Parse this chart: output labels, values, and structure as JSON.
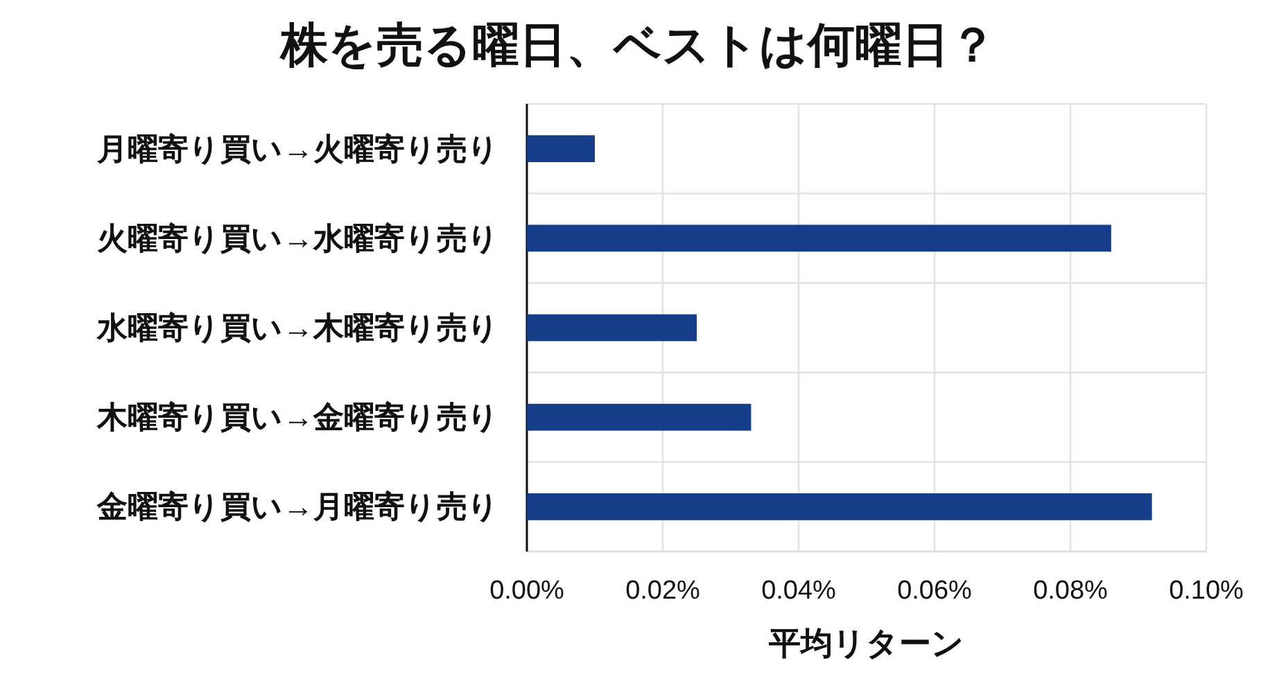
{
  "chart_data": {
    "type": "bar",
    "orientation": "horizontal",
    "title": "株を売る曜日、ベストは何曜日？",
    "xlabel": "平均リターン",
    "categories": [
      "月曜寄り買い→火曜寄り売り",
      "火曜寄り買い→水曜寄り売り",
      "水曜寄り買い→木曜寄り売り",
      "木曜寄り買い→金曜寄り売り",
      "金曜寄り買い→月曜寄り売り"
    ],
    "values": [
      0.01,
      0.086,
      0.025,
      0.033,
      0.092
    ],
    "color": "#163d87",
    "xlim": [
      0,
      0.1
    ],
    "xticks": [
      {
        "value": 0,
        "label": "0.00%"
      },
      {
        "value": 0.02,
        "label": "0.02%"
      },
      {
        "value": 0.04,
        "label": "0.04%"
      },
      {
        "value": 0.06,
        "label": "0.06%"
      },
      {
        "value": 0.08,
        "label": "0.08%"
      },
      {
        "value": 0.1,
        "label": "0.10%"
      }
    ],
    "grid": true
  }
}
